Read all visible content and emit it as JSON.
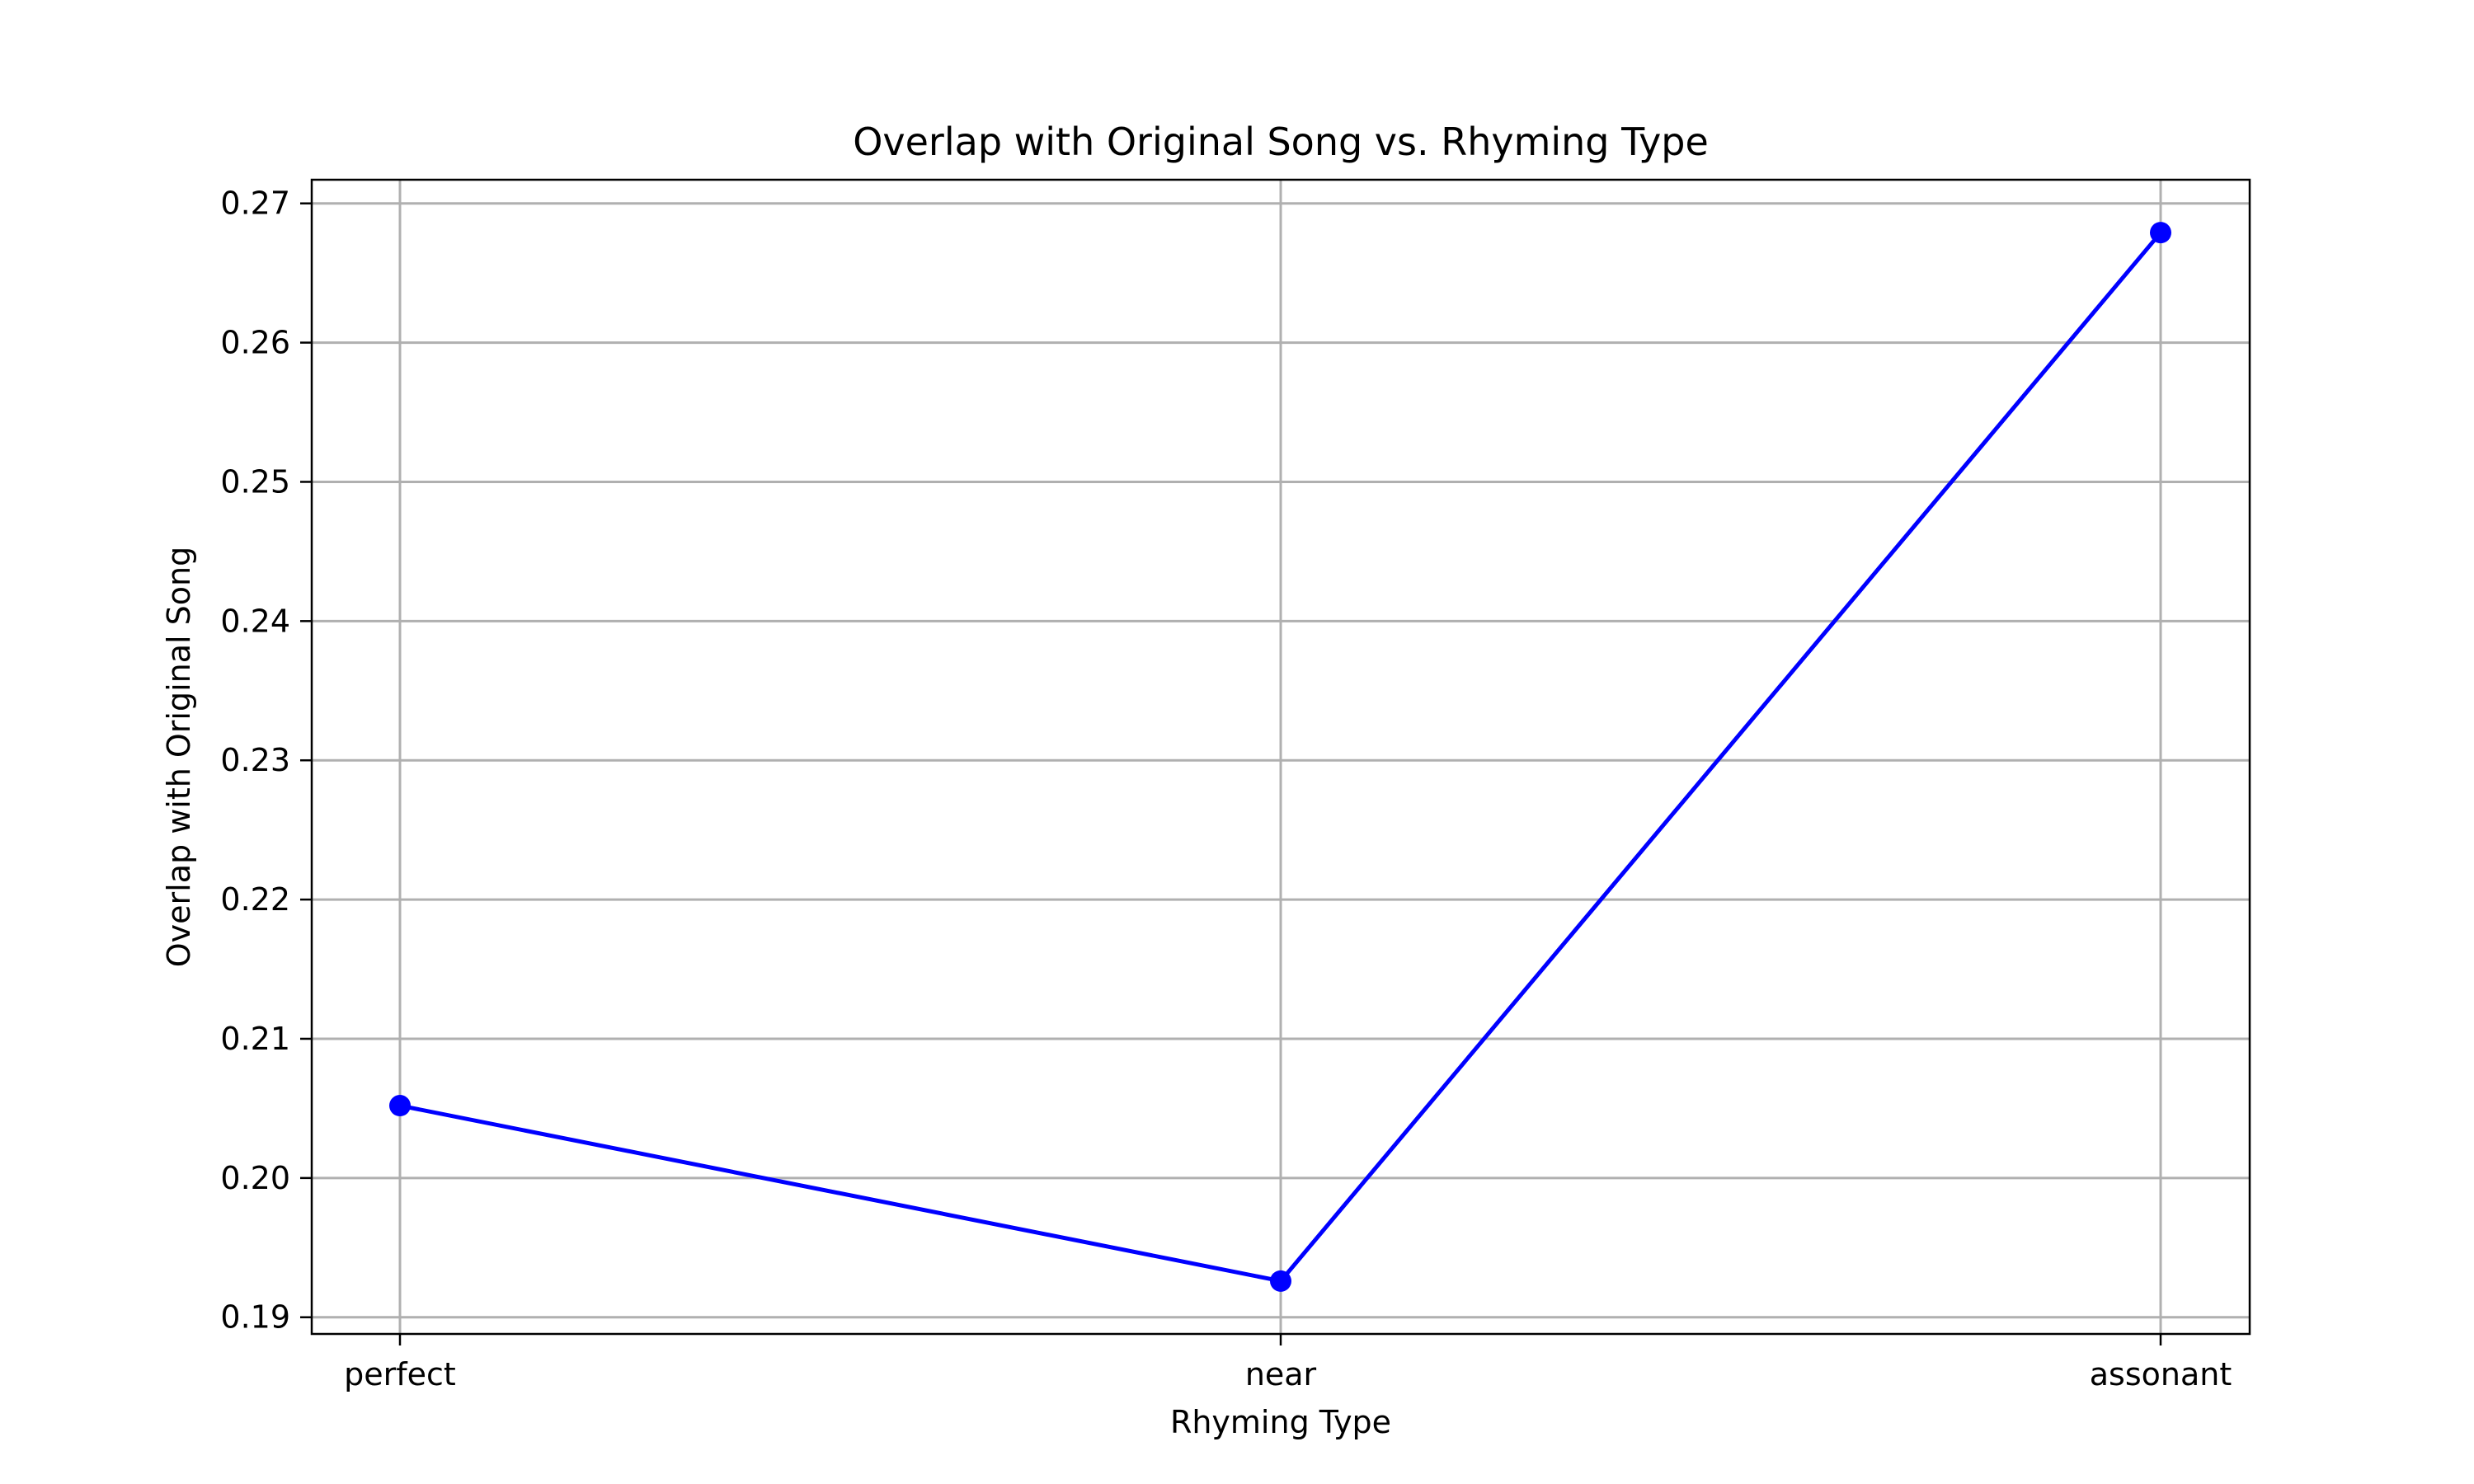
{
  "chart_data": {
    "type": "line",
    "title": "Overlap with Original Song vs. Rhyming Type",
    "xlabel": "Rhyming Type",
    "ylabel": "Overlap with Original Song",
    "categories": [
      "perfect",
      "near",
      "assonant"
    ],
    "series": [
      {
        "values": [
          0.2052,
          0.1926,
          0.2679
        ],
        "color": "#0000ff",
        "marker": "circle"
      }
    ],
    "ylim": [
      0.1888,
      0.2717
    ],
    "yticks": [
      0.19,
      0.2,
      0.21,
      0.22,
      0.23,
      0.24,
      0.25,
      0.26,
      0.27
    ],
    "ytick_labels": [
      "0.19",
      "0.20",
      "0.21",
      "0.22",
      "0.23",
      "0.24",
      "0.25",
      "0.26",
      "0.27"
    ],
    "grid": true
  }
}
